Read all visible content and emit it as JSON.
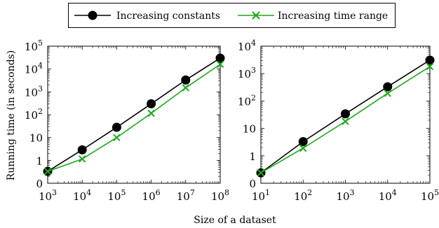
{
  "legend": {
    "entries": [
      {
        "label": "Increasing constants",
        "color": "#000000",
        "marker": "circle"
      },
      {
        "label": "Increasing time range",
        "color": "#1aaa1a",
        "marker": "x"
      }
    ]
  },
  "chart_data": [
    {
      "type": "line",
      "xscale": "log10",
      "yscale": "log10",
      "xlabel": "Size of a dataset",
      "ylabel": "Running time (in seconds)",
      "x": [
        1000,
        10000,
        100000,
        1000000,
        10000000,
        100000000
      ],
      "xtick_labels": [
        {
          "base": "10",
          "exp": "3"
        },
        {
          "base": "10",
          "exp": "4"
        },
        {
          "base": "10",
          "exp": "5"
        },
        {
          "base": "10",
          "exp": "6"
        },
        {
          "base": "10",
          "exp": "7"
        },
        {
          "base": "10",
          "exp": "8"
        }
      ],
      "yticks": [
        {
          "value": 0.1,
          "base": "0",
          "exp": ""
        },
        {
          "value": 1,
          "base": "1",
          "exp": ""
        },
        {
          "value": 10,
          "base": "10",
          "exp": ""
        },
        {
          "value": 100,
          "base": "10",
          "exp": "2"
        },
        {
          "value": 1000,
          "base": "10",
          "exp": "3"
        },
        {
          "value": 10000,
          "base": "10",
          "exp": "4"
        },
        {
          "value": 100000,
          "base": "10",
          "exp": "5"
        }
      ],
      "xlim": [
        1000,
        100000000
      ],
      "ylim": [
        0.1,
        100000
      ],
      "grid": false,
      "series": [
        {
          "name": "Increasing constants",
          "values": [
            0.33,
            2.9,
            28,
            300,
            3300,
            30000
          ]
        },
        {
          "name": "Increasing time range",
          "values": [
            0.33,
            1.15,
            10,
            115,
            1500,
            16000
          ]
        }
      ]
    },
    {
      "type": "line",
      "xscale": "log10",
      "yscale": "log10",
      "xlabel": "Size of a dataset",
      "ylabel": "",
      "x": [
        10,
        100,
        1000,
        10000,
        100000
      ],
      "xtick_labels": [
        {
          "base": "10",
          "exp": "1"
        },
        {
          "base": "10",
          "exp": "2"
        },
        {
          "base": "10",
          "exp": "3"
        },
        {
          "base": "10",
          "exp": "4"
        },
        {
          "base": "10",
          "exp": "5"
        }
      ],
      "yticks": [
        {
          "value": 0.1,
          "base": "0",
          "exp": ""
        },
        {
          "value": 1,
          "base": "1",
          "exp": ""
        },
        {
          "value": 10,
          "base": "10",
          "exp": ""
        },
        {
          "value": 100,
          "base": "10",
          "exp": "2"
        },
        {
          "value": 1000,
          "base": "10",
          "exp": "3"
        },
        {
          "value": 10000,
          "base": "10",
          "exp": "4"
        }
      ],
      "xlim": [
        10,
        100000
      ],
      "ylim": [
        0.1,
        10000
      ],
      "grid": false,
      "series": [
        {
          "name": "Increasing constants",
          "values": [
            0.24,
            3.3,
            34,
            330,
            3100
          ]
        },
        {
          "name": "Increasing time range",
          "values": [
            0.24,
            1.9,
            18,
            190,
            1800
          ]
        }
      ]
    }
  ]
}
